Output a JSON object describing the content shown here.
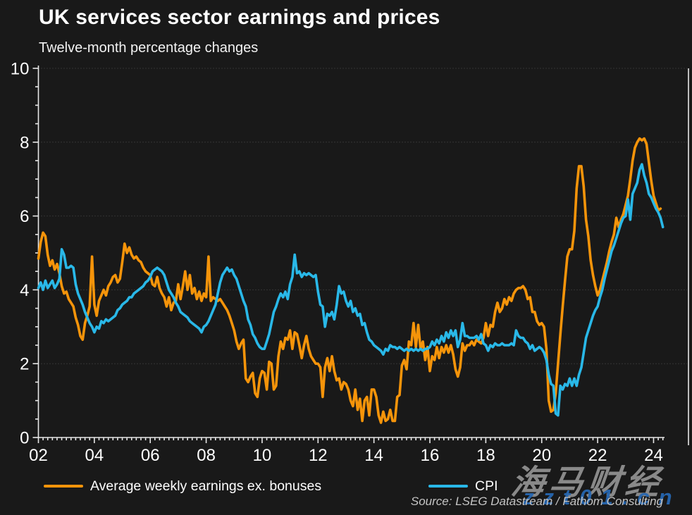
{
  "title": "UK services sector earnings and prices",
  "subtitle": "Twelve-month percentage changes",
  "source": "Source: LSEG Datastream / Fathom Consulting",
  "watermark": {
    "cjk_text": "海马财经",
    "latin_text": "zzt01.cn"
  },
  "colors": {
    "background": "#191919",
    "earnings_orange": "#F5940A",
    "cpi_cyan": "#29B8E8",
    "axis": "#e8e8e8",
    "gridline": "#4f4f4f",
    "watermark_gray": "#989898",
    "watermark_blue": "#2666B0"
  },
  "chart_data": {
    "type": "line",
    "title": "UK services sector earnings and prices",
    "subtitle": "Twelve-month percentage changes",
    "xlabel": "",
    "ylabel": "Twelve-month percentage change",
    "ylim": [
      0,
      10
    ],
    "y_ticks": [
      0,
      2,
      4,
      6,
      8,
      10
    ],
    "y_minor_tick_step": 0.5,
    "x_start_year": 2002,
    "x_end_year_approx": 2024.4,
    "x_tick_labels": [
      "02",
      "04",
      "06",
      "08",
      "10",
      "12",
      "14",
      "16",
      "18",
      "20",
      "22",
      "24"
    ],
    "frequency": "monthly",
    "grid": "horizontal dotted at even values",
    "legend_position": "bottom",
    "series": [
      {
        "name": "Average weekly earnings ex. bonuses",
        "color": "#F5940A",
        "start": "2002-01",
        "end": "2024-04",
        "values": [
          4.85,
          5.3,
          5.55,
          5.45,
          4.95,
          4.65,
          4.8,
          4.55,
          4.7,
          4.45,
          4.1,
          3.9,
          3.95,
          3.75,
          3.65,
          3.55,
          3.25,
          3.05,
          2.75,
          2.65,
          3.1,
          3.3,
          3.55,
          4.9,
          3.6,
          3.3,
          3.7,
          3.85,
          4.0,
          3.85,
          4.1,
          4.2,
          4.35,
          4.4,
          4.2,
          4.3,
          4.75,
          5.25,
          5.0,
          5.15,
          4.95,
          4.85,
          4.9,
          4.8,
          4.75,
          4.6,
          4.5,
          4.45,
          4.4,
          4.15,
          4.1,
          4.35,
          4.05,
          3.9,
          3.8,
          3.55,
          3.8,
          3.45,
          3.65,
          3.7,
          4.15,
          3.75,
          4.1,
          4.5,
          4.0,
          4.4,
          3.9,
          4.05,
          3.75,
          3.95,
          3.7,
          3.9,
          3.8,
          4.9,
          3.7,
          3.8,
          3.75,
          3.7,
          3.75,
          3.65,
          3.55,
          3.45,
          3.3,
          3.1,
          2.9,
          2.6,
          2.4,
          2.55,
          2.65,
          1.6,
          1.5,
          1.65,
          1.75,
          1.2,
          1.1,
          1.6,
          1.8,
          1.75,
          1.3,
          2.05,
          2.0,
          1.3,
          1.4,
          2.2,
          2.6,
          2.4,
          2.7,
          2.65,
          2.9,
          2.4,
          2.85,
          2.8,
          2.5,
          2.15,
          2.5,
          2.75,
          2.4,
          2.2,
          2.1,
          2.0,
          2.0,
          1.9,
          1.1,
          1.9,
          2.15,
          1.8,
          2.2,
          1.8,
          1.55,
          1.6,
          1.3,
          1.5,
          1.45,
          1.3,
          1.0,
          0.85,
          1.3,
          0.75,
          1.05,
          0.45,
          1.0,
          1.1,
          0.6,
          1.3,
          1.3,
          1.1,
          0.6,
          0.4,
          0.7,
          0.45,
          0.5,
          0.75,
          0.45,
          0.45,
          1.1,
          1.15,
          1.95,
          2.1,
          1.85,
          2.6,
          2.5,
          3.1,
          2.45,
          3.05,
          2.4,
          2.6,
          2.1,
          2.45,
          1.8,
          2.2,
          2.1,
          2.45,
          2.15,
          2.45,
          2.3,
          2.5,
          2.3,
          2.5,
          2.25,
          1.85,
          1.65,
          1.9,
          2.55,
          2.35,
          2.5,
          2.5,
          2.6,
          2.5,
          2.65,
          2.6,
          2.55,
          2.7,
          3.1,
          2.75,
          3.05,
          3.0,
          3.4,
          3.65,
          3.4,
          3.5,
          3.75,
          3.6,
          3.8,
          3.7,
          3.9,
          4.0,
          4.05,
          4.05,
          4.1,
          4.0,
          3.75,
          3.8,
          3.4,
          3.4,
          3.15,
          3.05,
          3.1,
          3.0,
          2.4,
          1.0,
          0.7,
          0.75,
          1.2,
          2.0,
          2.8,
          3.55,
          4.25,
          4.9,
          5.1,
          5.1,
          5.6,
          6.75,
          7.35,
          7.35,
          6.8,
          5.9,
          5.45,
          4.8,
          4.4,
          4.1,
          3.85,
          4.0,
          4.25,
          4.5,
          4.75,
          5.05,
          5.3,
          5.5,
          5.95,
          5.7,
          5.9,
          6.05,
          6.3,
          6.55,
          7.0,
          7.5,
          7.85,
          8.0,
          8.1,
          8.05,
          8.1,
          7.95,
          7.45,
          6.95,
          6.55,
          6.35,
          6.15,
          6.2
        ]
      },
      {
        "name": "CPI",
        "color": "#29B8E8",
        "start": "2002-01",
        "end": "2024-05",
        "values": [
          4.05,
          4.2,
          4.0,
          4.25,
          4.05,
          4.15,
          4.25,
          4.05,
          4.15,
          4.3,
          5.1,
          4.95,
          4.6,
          4.6,
          4.65,
          4.6,
          4.15,
          3.9,
          3.75,
          3.6,
          3.4,
          3.25,
          3.1,
          3.0,
          2.85,
          3.0,
          2.95,
          3.15,
          3.1,
          3.2,
          3.15,
          3.2,
          3.25,
          3.3,
          3.45,
          3.5,
          3.6,
          3.65,
          3.7,
          3.8,
          3.8,
          3.9,
          3.95,
          4.0,
          4.05,
          4.1,
          4.2,
          4.25,
          4.35,
          4.5,
          4.55,
          4.6,
          4.55,
          4.5,
          4.4,
          4.2,
          4.0,
          3.9,
          3.8,
          3.65,
          3.55,
          3.4,
          3.35,
          3.3,
          3.25,
          3.15,
          3.1,
          3.05,
          3.0,
          2.95,
          2.85,
          3.0,
          3.05,
          3.15,
          3.3,
          3.45,
          3.6,
          3.9,
          4.2,
          4.4,
          4.5,
          4.6,
          4.5,
          4.55,
          4.4,
          4.3,
          4.1,
          3.9,
          3.7,
          3.55,
          3.2,
          3.05,
          2.8,
          2.7,
          2.55,
          2.45,
          2.4,
          2.4,
          2.6,
          2.8,
          3.1,
          3.4,
          3.55,
          3.75,
          3.9,
          3.8,
          3.95,
          3.75,
          4.15,
          4.35,
          4.95,
          4.45,
          4.5,
          4.35,
          4.45,
          4.4,
          4.45,
          4.4,
          4.35,
          4.4,
          3.95,
          3.6,
          3.55,
          3.0,
          3.35,
          3.3,
          3.4,
          3.2,
          3.6,
          4.1,
          3.9,
          3.95,
          3.7,
          3.55,
          3.7,
          3.4,
          3.5,
          3.3,
          3.35,
          3.05,
          3.1,
          2.85,
          2.65,
          2.6,
          2.5,
          2.45,
          2.4,
          2.35,
          2.25,
          2.4,
          2.35,
          2.5,
          2.45,
          2.45,
          2.4,
          2.45,
          2.4,
          2.35,
          2.4,
          2.35,
          2.4,
          2.35,
          2.4,
          2.35,
          2.4,
          2.35,
          2.4,
          2.4,
          2.45,
          2.6,
          2.5,
          2.65,
          2.55,
          2.75,
          2.6,
          2.85,
          2.7,
          2.9,
          2.75,
          2.9,
          2.45,
          2.65,
          3.1,
          2.75,
          2.75,
          2.7,
          2.7,
          2.7,
          2.75,
          2.65,
          2.8,
          2.55,
          2.5,
          2.35,
          2.5,
          2.45,
          2.55,
          2.5,
          2.5,
          2.55,
          2.5,
          2.5,
          2.5,
          2.55,
          2.5,
          2.9,
          2.75,
          2.7,
          2.7,
          2.6,
          2.55,
          2.4,
          2.5,
          2.35,
          2.4,
          2.45,
          2.4,
          2.3,
          2.1,
          1.7,
          1.45,
          1.4,
          0.65,
          0.6,
          1.4,
          1.3,
          1.45,
          1.4,
          1.6,
          1.4,
          1.6,
          1.4,
          1.7,
          1.9,
          2.3,
          2.7,
          2.9,
          3.1,
          3.3,
          3.45,
          3.55,
          3.8,
          4.0,
          4.3,
          4.55,
          4.8,
          5.05,
          5.2,
          5.4,
          5.6,
          5.8,
          5.95,
          6.0,
          6.45,
          5.9,
          6.6,
          6.75,
          6.9,
          7.25,
          7.4,
          7.1,
          6.9,
          6.6,
          6.5,
          6.35,
          6.2,
          6.1,
          5.95,
          5.7
        ]
      }
    ]
  }
}
